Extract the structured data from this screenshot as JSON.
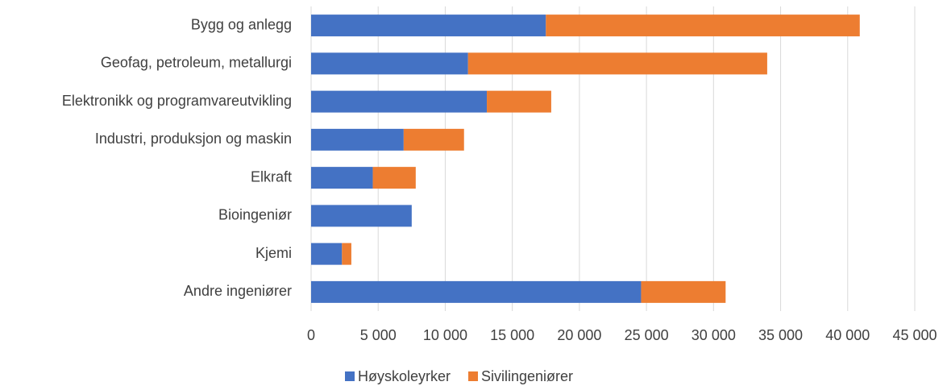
{
  "chart_data": {
    "type": "bar",
    "orientation": "horizontal",
    "stacked": true,
    "categories": [
      "Bygg og anlegg",
      "Geofag, petroleum, metallurgi",
      "Elektronikk og programvareutvikling",
      "Industri, produksjon og maskin",
      "Elkraft",
      "Bioingeniør",
      "Kjemi",
      "Andre ingeniører"
    ],
    "series": [
      {
        "name": "Høyskoleyrker",
        "color": "#4472c4",
        "values": [
          17500,
          11700,
          13100,
          6900,
          4600,
          7500,
          2300,
          24600
        ]
      },
      {
        "name": "Sivilingeniører",
        "color": "#ed7d31",
        "values": [
          23400,
          22300,
          4800,
          4500,
          3200,
          0,
          700,
          6300
        ]
      }
    ],
    "xlim": [
      0,
      45000
    ],
    "xticks": [
      0,
      {
        "value": 5000,
        "label": "5 000"
      },
      {
        "value": 10000,
        "label": "10 000"
      },
      {
        "value": 15000,
        "label": "15 000"
      },
      {
        "value": 20000,
        "label": "20 000"
      },
      {
        "value": 25000,
        "label": "25 000"
      },
      {
        "value": 30000,
        "label": "30 000"
      },
      {
        "value": 35000,
        "label": "35 000"
      },
      {
        "value": 40000,
        "label": "40 000"
      },
      {
        "value": 45000,
        "label": "45 000"
      }
    ],
    "grid": true,
    "legend": "bottom"
  }
}
